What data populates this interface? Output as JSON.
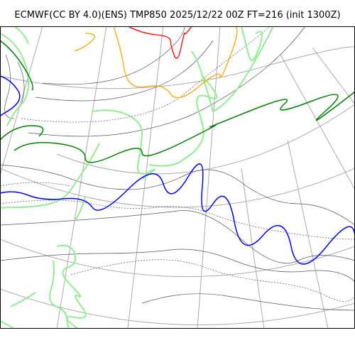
{
  "title": "ECMWF(CC BY 4.0)(ENS) TMP850 2025/12/22 00Z FT=216 (init 1300Z)",
  "colors": {
    "graticule": "#aaaaaa",
    "coastline": "#90ee90",
    "isotherm_thin": "#555555",
    "isotherm_blue": "#0000ff",
    "isotherm_green": "#008000",
    "isotherm_orange": "#ffa500",
    "isotherm_red": "#ff0000",
    "frame": "#000000"
  }
}
